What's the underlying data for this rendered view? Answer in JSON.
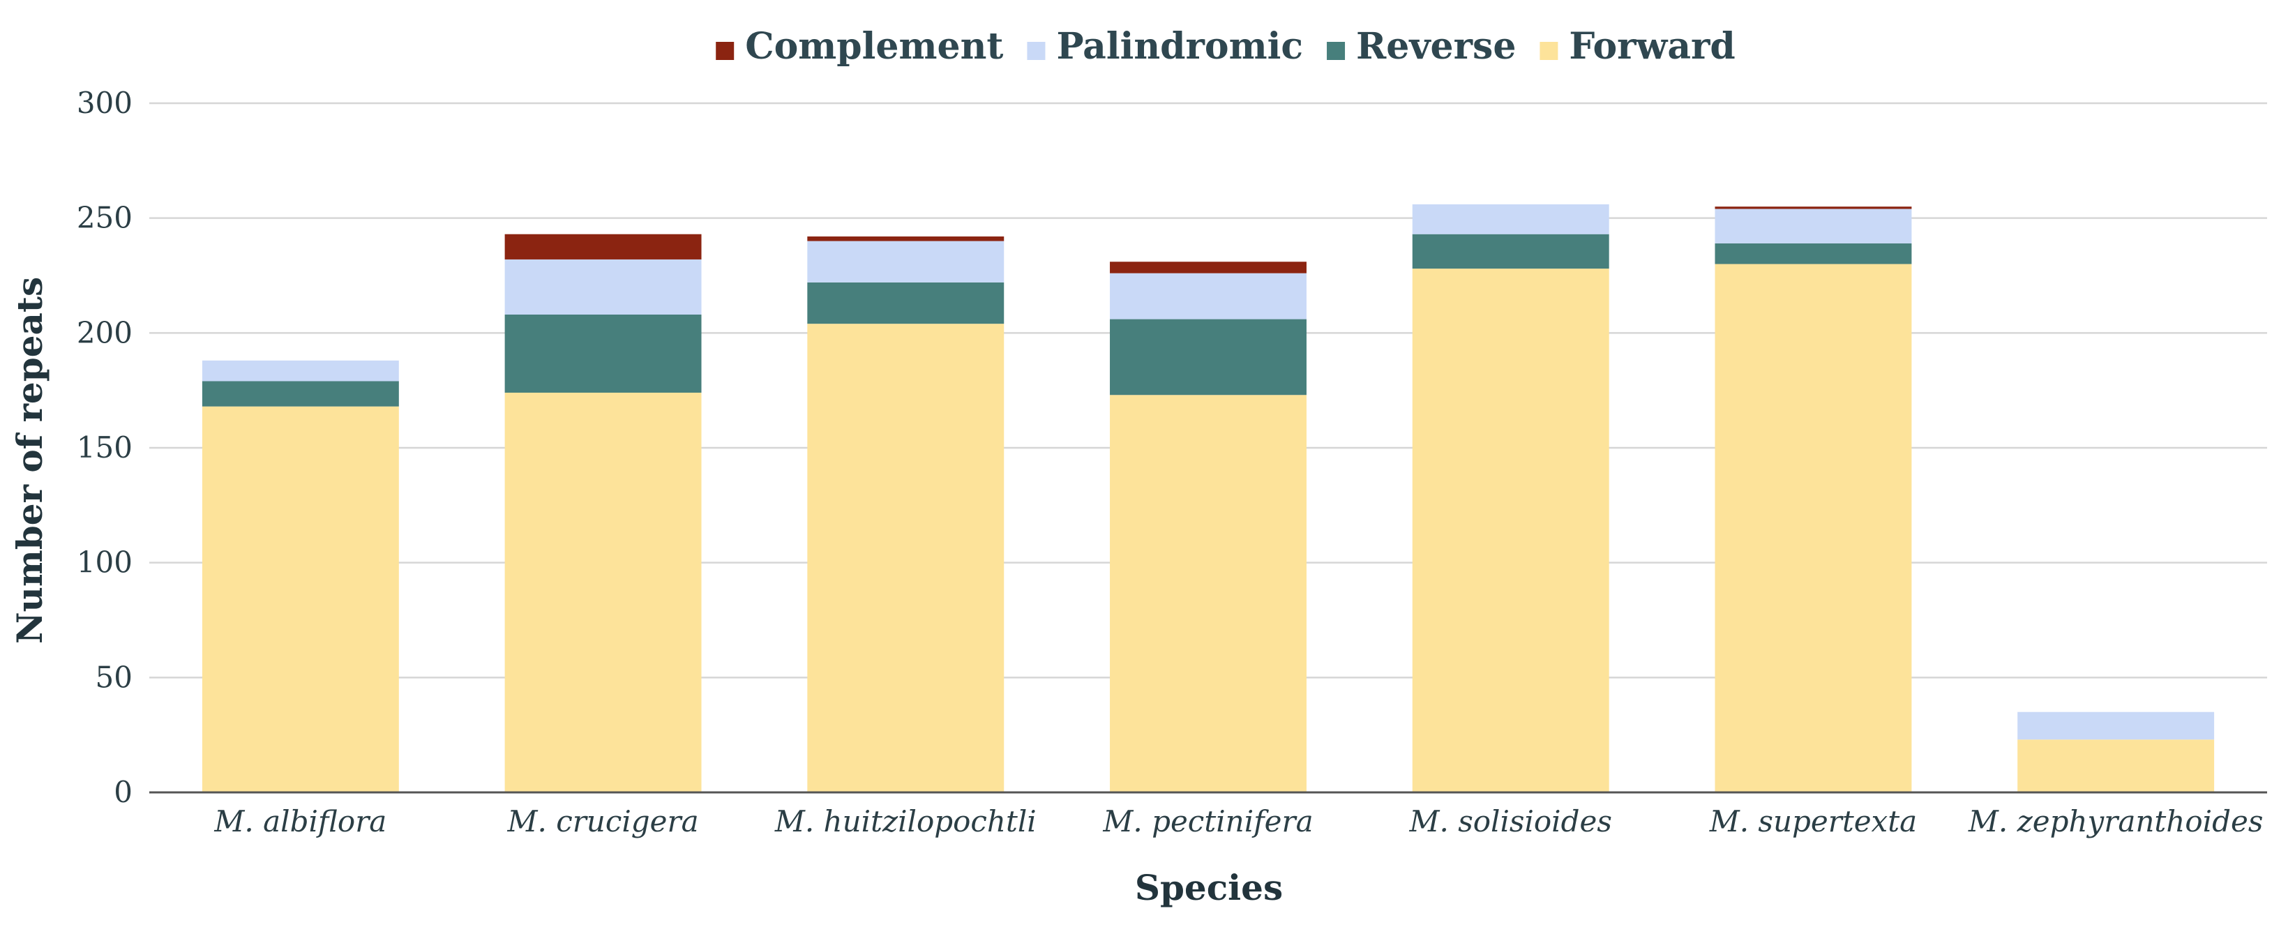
{
  "chart_data": {
    "type": "bar",
    "stacked": true,
    "xlabel": "Species",
    "ylabel": "Number of repeats",
    "ylim": [
      0,
      300
    ],
    "yticks": [
      0,
      50,
      100,
      150,
      200,
      250,
      300
    ],
    "grid": true,
    "legend_position": "top",
    "categories": [
      "M. albiflora",
      "M. crucigera",
      "M. huitzilopochtli",
      "M. pectinifera",
      "M. solisioides",
      "M. supertexta",
      "M. zephyranthoides"
    ],
    "series": [
      {
        "name": "Forward",
        "color": "#fde39a",
        "values": [
          168,
          174,
          204,
          173,
          228,
          230,
          23
        ]
      },
      {
        "name": "Reverse",
        "color": "#477f7c",
        "values": [
          11,
          34,
          18,
          33,
          15,
          9,
          0
        ]
      },
      {
        "name": "Palindromic",
        "color": "#c9d9f7",
        "values": [
          9,
          24,
          18,
          20,
          13,
          15,
          12
        ]
      },
      {
        "name": "Complement",
        "color": "#8b2411",
        "values": [
          0,
          11,
          2,
          5,
          0,
          1,
          0
        ]
      }
    ],
    "legend_order": [
      "Complement",
      "Palindromic",
      "Reverse",
      "Forward"
    ]
  },
  "colors": {
    "grid": "#d6d6d6",
    "axis": "#555555"
  }
}
